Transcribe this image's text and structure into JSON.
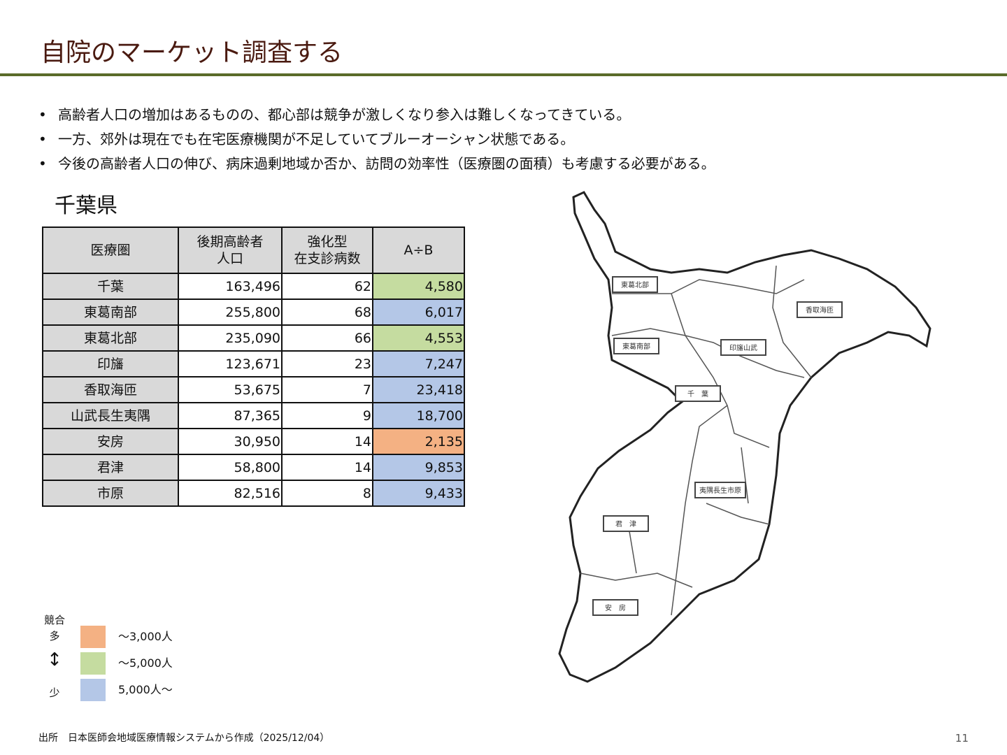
{
  "title": "自院のマーケット調査する",
  "bullets": [
    "高齢者人口の増加はあるものの、都心部は競争が激しくなり参入は難しくなってきている。",
    "一方、郊外は現在でも在宅医療機関が不足していてブルーオーシャン状態である。",
    "今後の高齢者人口の伸び、病床過剰地域か否か、訪問の効率性（医療圏の面積）も考慮する必要がある。"
  ],
  "prefecture": "千葉県",
  "table": {
    "headers": [
      "医療圏",
      "後期高齢者\n人口",
      "強化型\n在支診病数",
      "A÷B"
    ],
    "rows": [
      {
        "area": "千葉",
        "pop": "163,496",
        "clinics": "62",
        "ratio": "4,580",
        "level": "mid"
      },
      {
        "area": "東葛南部",
        "pop": "255,800",
        "clinics": "68",
        "ratio": "6,017",
        "level": "low"
      },
      {
        "area": "東葛北部",
        "pop": "235,090",
        "clinics": "66",
        "ratio": "4,553",
        "level": "mid"
      },
      {
        "area": "印旛",
        "pop": "123,671",
        "clinics": "23",
        "ratio": "7,247",
        "level": "low"
      },
      {
        "area": "香取海匝",
        "pop": "53,675",
        "clinics": "7",
        "ratio": "23,418",
        "level": "low"
      },
      {
        "area": "山武長生夷隅",
        "pop": "87,365",
        "clinics": "9",
        "ratio": "18,700",
        "level": "low"
      },
      {
        "area": "安房",
        "pop": "30,950",
        "clinics": "14",
        "ratio": "2,135",
        "level": "high"
      },
      {
        "area": "君津",
        "pop": "58,800",
        "clinics": "14",
        "ratio": "9,853",
        "level": "low"
      },
      {
        "area": "市原",
        "pop": "82,516",
        "clinics": "8",
        "ratio": "9,433",
        "level": "low"
      }
    ]
  },
  "colors": {
    "high": "#f4b183",
    "mid": "#c5dca0",
    "low": "#b4c7e7",
    "accent_rule": "#5a6b2a",
    "title": "#4a1a10"
  },
  "legend": {
    "competition": "競合",
    "many": "多",
    "few": "少",
    "arrow_icon": "up-down-arrow",
    "items": [
      "～3,000人",
      "～5,000人",
      "5,000人～"
    ]
  },
  "map_labels": [
    "東葛北部",
    "東葛南部",
    "香取海匝",
    "印旛山武",
    "千　葉",
    "夷隅長生市原",
    "君　津",
    "安　房"
  ],
  "footer": "出所　日本医師会地域医療情報システムから作成（2025/12/04）",
  "page_number": "11"
}
